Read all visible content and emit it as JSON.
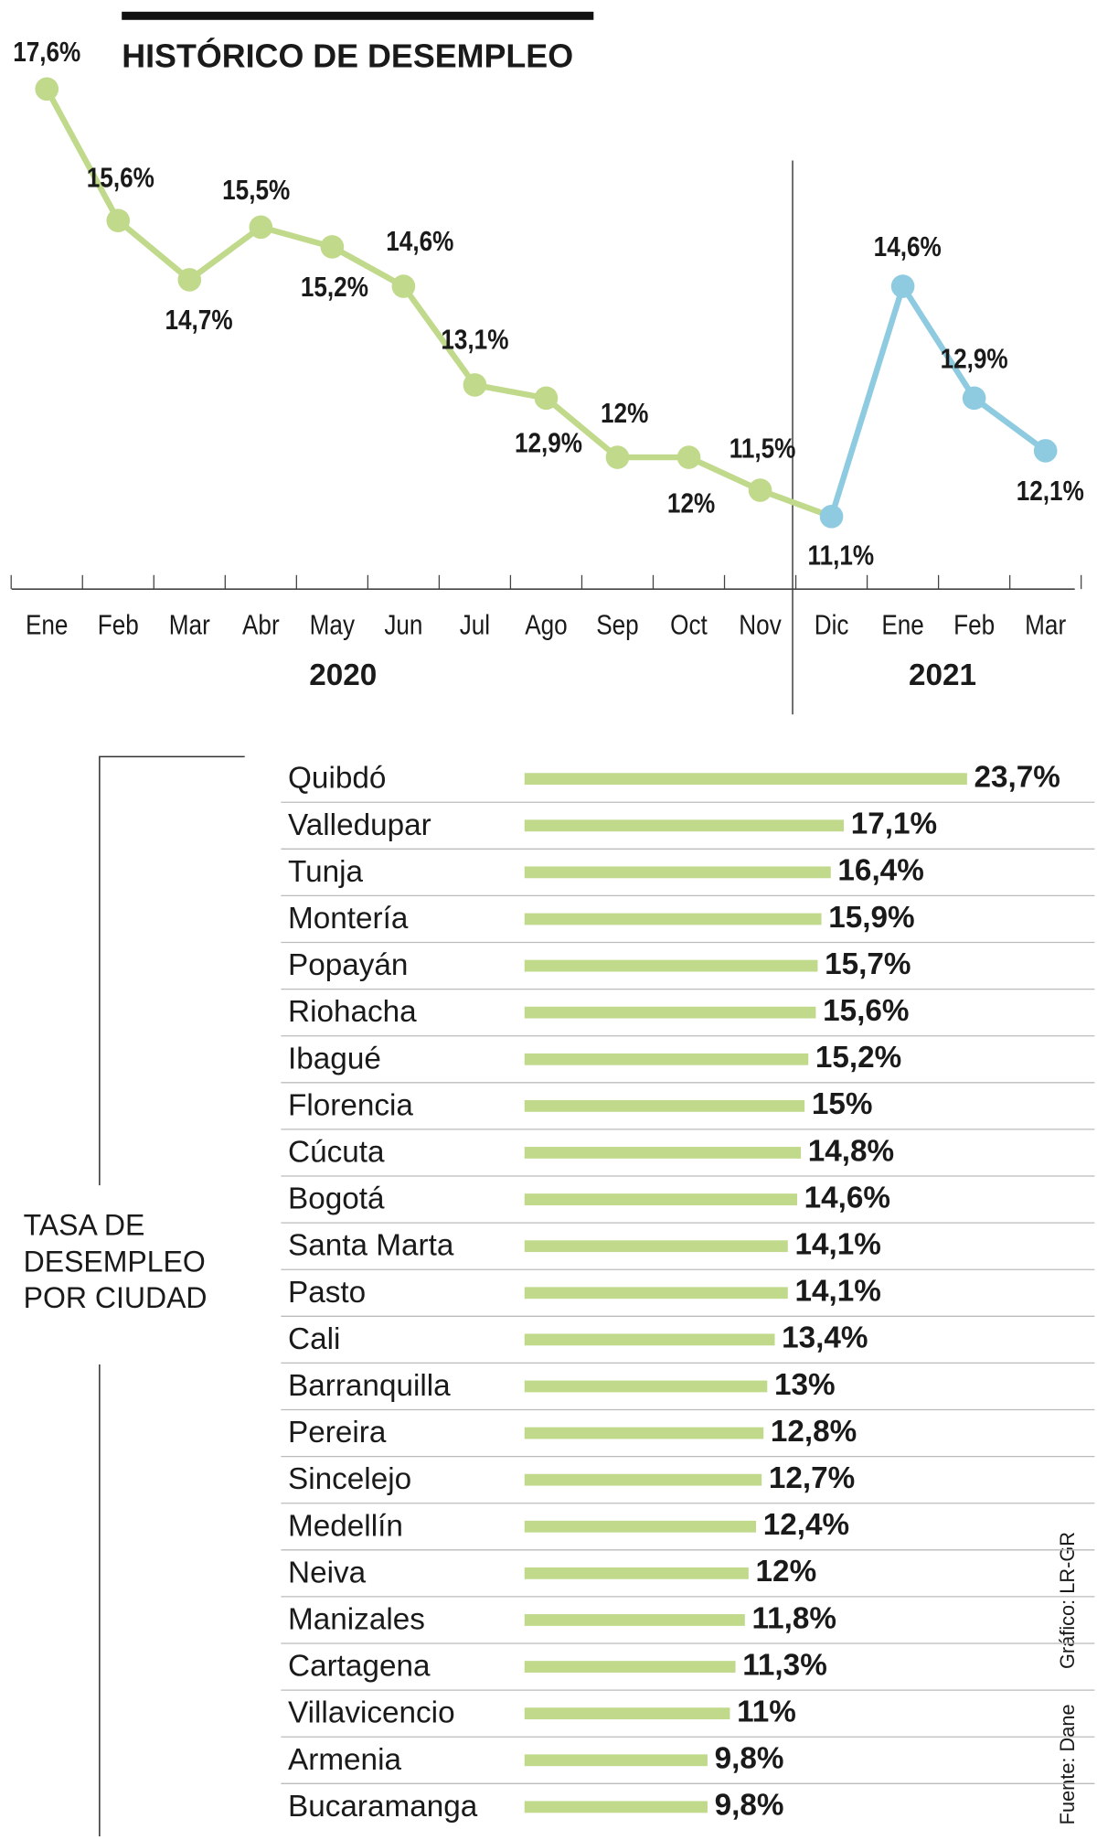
{
  "chart_data": [
    {
      "type": "line",
      "title": "HISTÓRICO DE DESEMPLEO",
      "categories": [
        "Ene",
        "Feb",
        "Mar",
        "Abr",
        "May",
        "Jun",
        "Jul",
        "Ago",
        "Sep",
        "Oct",
        "Nov",
        "Dic",
        "Ene",
        "Feb",
        "Mar"
      ],
      "groups": [
        "2020",
        "2021"
      ],
      "series": [
        {
          "colors": [
            "#c0d98b",
            "#c0d98b",
            "#c0d98b",
            "#c0d98b",
            "#c0d98b",
            "#c0d98b",
            "#c0d98b",
            "#c0d98b",
            "#c0d98b",
            "#c0d98b",
            "#c0d98b",
            "#8fcbe0",
            "#8fcbe0",
            "#8fcbe0",
            "#8fcbe0"
          ],
          "values": [
            17.6,
            15.6,
            14.7,
            15.5,
            15.2,
            14.6,
            13.1,
            12.9,
            12,
            12,
            11.5,
            11.1,
            14.6,
            12.9,
            12.1
          ],
          "value_labels": [
            "17,6%",
            "15,6%",
            "14,7%",
            "15,5%",
            "15,2%",
            "14,6%",
            "13,1%",
            "12,9%",
            "12%",
            "12%",
            "11,5%",
            "11,1%",
            "14,6%",
            "12,9%",
            "12,1%"
          ]
        }
      ]
    },
    {
      "type": "hbar",
      "title": [
        "TASA DE",
        "DESEMPLEO",
        "POR CIUDAD"
      ],
      "color": "#c0d98b",
      "categories": [
        "Quibdó",
        "Valledupar",
        "Tunja",
        "Montería",
        "Popayán",
        "Riohacha",
        "Ibagué",
        "Florencia",
        "Cúcuta",
        "Bogotá",
        "Santa Marta",
        "Pasto",
        "Cali",
        "Barranquilla",
        "Pereira",
        "Sincelejo",
        "Medellín",
        "Neiva",
        "Manizales",
        "Cartagena",
        "Villavicencio",
        "Armenia",
        "Bucaramanga"
      ],
      "values": [
        23.7,
        17.1,
        16.4,
        15.9,
        15.7,
        15.6,
        15.2,
        15,
        14.8,
        14.6,
        14.1,
        14.1,
        13.4,
        13,
        12.8,
        12.7,
        12.4,
        12,
        11.8,
        11.3,
        11,
        9.8,
        9.8
      ],
      "value_labels": [
        "23,7%",
        "17,1%",
        "16,4%",
        "15,9%",
        "15,7%",
        "15,6%",
        "15,2%",
        "15%",
        "14,8%",
        "14,6%",
        "14,1%",
        "14,1%",
        "13,4%",
        "13%",
        "12,8%",
        "12,7%",
        "12,4%",
        "12%",
        "11,8%",
        "11,3%",
        "11%",
        "9,8%",
        "9,8%"
      ]
    }
  ],
  "notes": [
    "Gráfico: LR-GR",
    "Fuente: Dane"
  ]
}
